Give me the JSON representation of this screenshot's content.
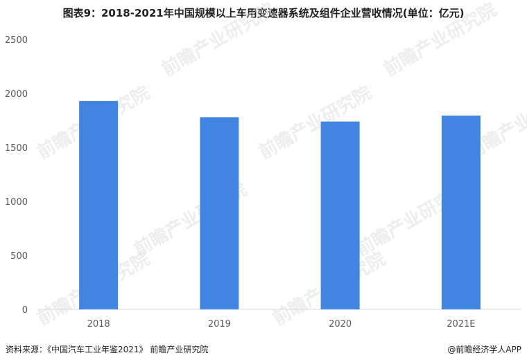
{
  "title": "图表9：2018-2021年中国规模以上车用变速器系统及组件企业营收情况(单位：亿元)",
  "chart_data": {
    "type": "bar",
    "title": "图表9：2018-2021年中国规模以上车用变速器系统及组件企业营收情况(单位：亿元)",
    "categories": [
      "2018",
      "2019",
      "2020",
      "2021E"
    ],
    "values": [
      1930,
      1780,
      1740,
      1795
    ],
    "ylim": [
      0,
      2500
    ],
    "yticks": [
      0,
      500,
      1000,
      1500,
      2000,
      2500
    ],
    "xlabel": "",
    "ylabel": "",
    "grid": false,
    "bar_color": "#4285e0"
  },
  "footer": {
    "source": "资料来源：《中国汽车工业年鉴2021》 前瞻产业研究院",
    "brand": "@前瞻经济学人APP"
  },
  "watermark": {
    "text": "前瞻产业研究院"
  },
  "colors": {
    "bar": "#4285e0",
    "axis": "#d9d9d9",
    "tick_text": "#595959",
    "title_text": "#1f1f1f"
  }
}
